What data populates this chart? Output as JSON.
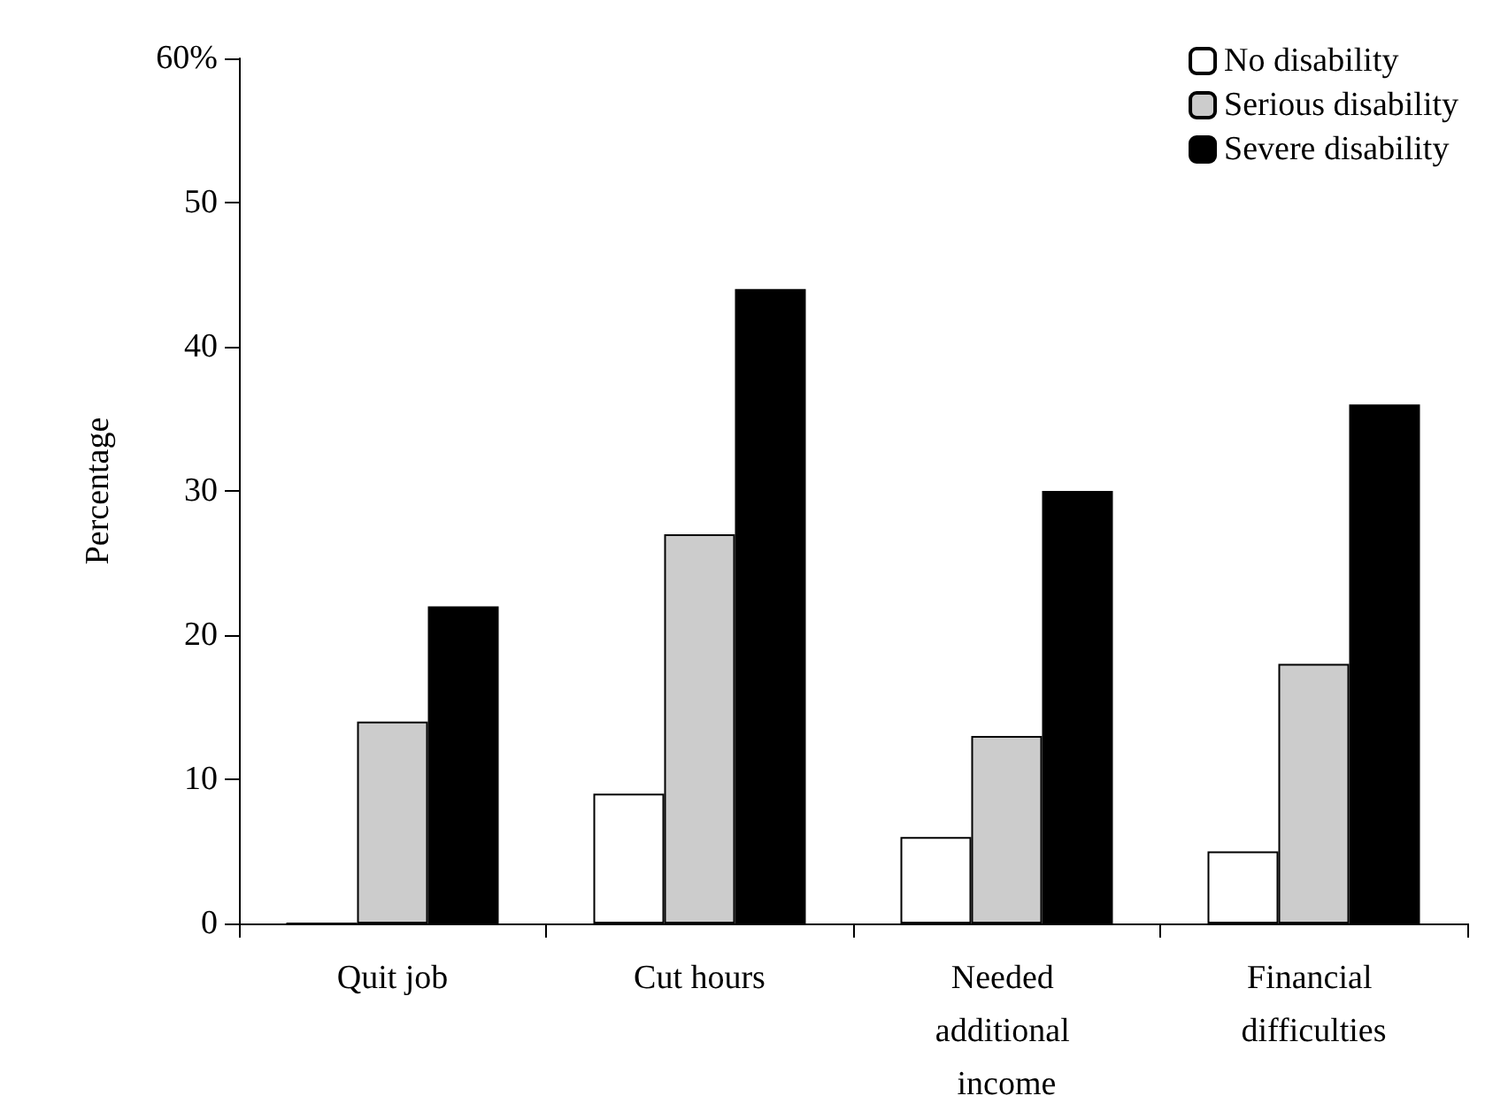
{
  "chart_data": {
    "type": "bar",
    "ylabel": "Percentage",
    "categories": [
      "Quit job",
      "Cut hours",
      "Needed additional income",
      "Financial difficulties"
    ],
    "series": [
      {
        "name": "No disability",
        "color": "#ffffff",
        "values": [
          0,
          9,
          6,
          5
        ]
      },
      {
        "name": "Serious disability",
        "color": "#cccccc",
        "values": [
          14,
          27,
          13,
          18
        ]
      },
      {
        "name": "Severe disability",
        "color": "#000000",
        "values": [
          22,
          44,
          30,
          36
        ]
      }
    ],
    "ylim": [
      0,
      60
    ],
    "yticks": [
      0,
      10,
      20,
      30,
      40,
      50,
      {
        "value": 60,
        "label": "60%"
      }
    ],
    "grid": false,
    "legend": "top right"
  }
}
